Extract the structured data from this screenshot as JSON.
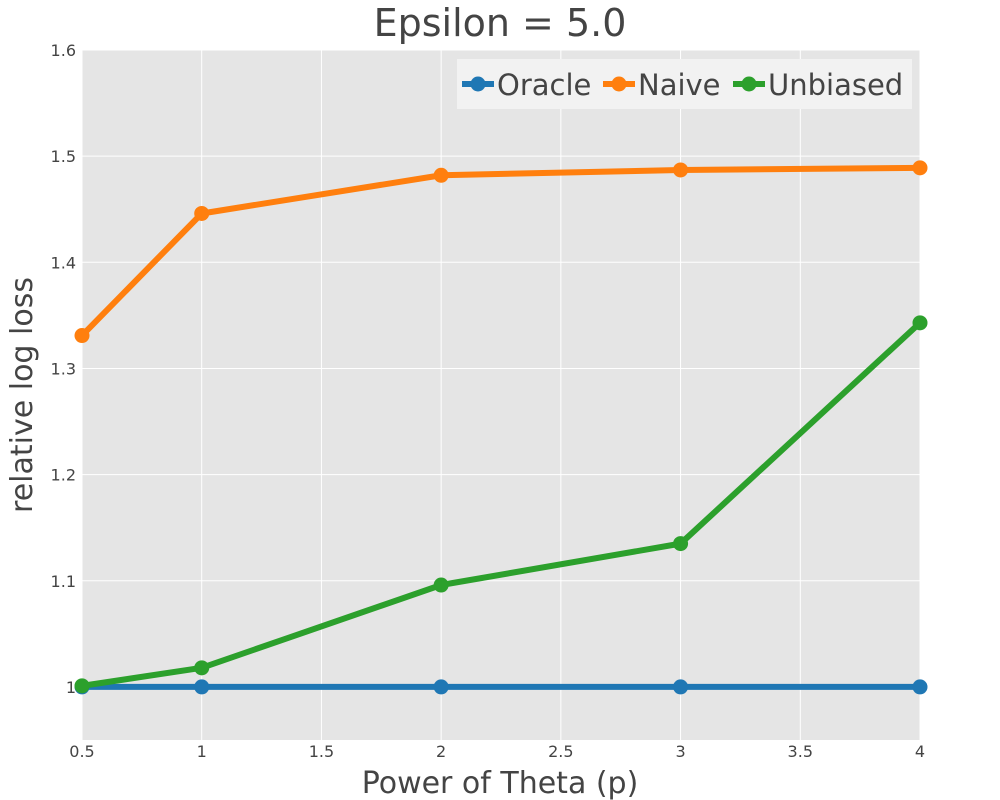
{
  "chart_data": {
    "type": "line",
    "title": "Epsilon = 5.0",
    "xlabel": "Power of Theta (p)",
    "ylabel": "relative log loss",
    "xlim": [
      0.5,
      4
    ],
    "ylim": [
      0.95,
      1.6
    ],
    "x_ticks": [
      0.5,
      1,
      1.5,
      2,
      2.5,
      3,
      3.5,
      4
    ],
    "x_tick_labels": [
      "0.5",
      "1",
      "1.5",
      "2",
      "2.5",
      "3",
      "3.5",
      "4"
    ],
    "y_ticks": [
      1,
      1.1,
      1.2,
      1.3,
      1.4,
      1.5,
      1.6
    ],
    "y_tick_labels": [
      "1",
      "1.1",
      "1.2",
      "1.3",
      "1.4",
      "1.5",
      "1.6"
    ],
    "grid": true,
    "legend_position": "top-right",
    "x": [
      0.5,
      1,
      2,
      3,
      4
    ],
    "series": [
      {
        "name": "Oracle",
        "color": "#1f77b4",
        "values": [
          1.0,
          1.0,
          1.0,
          1.0,
          1.0
        ]
      },
      {
        "name": "Naive",
        "color": "#ff7f0e",
        "values": [
          1.331,
          1.446,
          1.482,
          1.487,
          1.489
        ]
      },
      {
        "name": "Unbiased",
        "color": "#2ca02c",
        "values": [
          1.001,
          1.018,
          1.096,
          1.135,
          1.343
        ]
      }
    ]
  }
}
